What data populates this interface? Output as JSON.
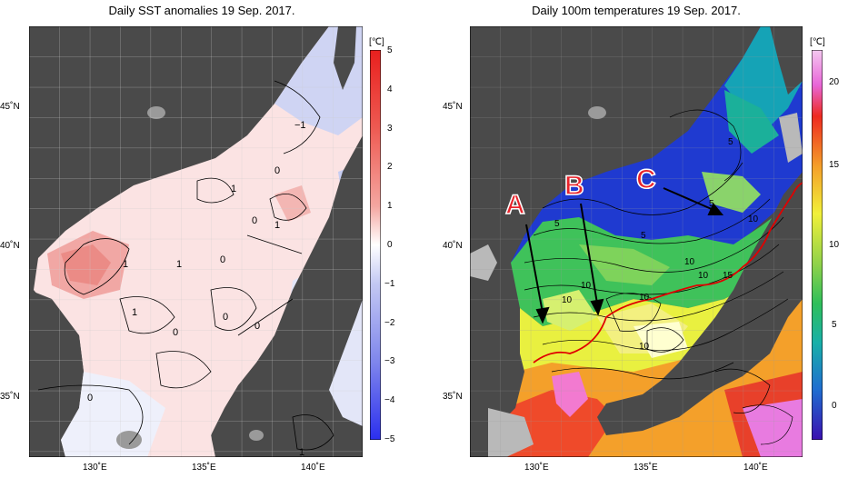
{
  "left_panel": {
    "title": "Daily SST anomalies 19 Sep. 2017.",
    "unit": "[℃]",
    "colorbar_ticks": [
      "5",
      "4",
      "3",
      "2",
      "1",
      "0",
      "−1",
      "−2",
      "−3",
      "−4",
      "−5"
    ],
    "contour_labels": [
      "−1",
      "0",
      "1",
      "1",
      "0",
      "1",
      "1",
      "1",
      "0",
      "0",
      "0",
      "0",
      "1",
      "0"
    ],
    "lat_labels": [
      "45˚N",
      "40˚N",
      "35˚N"
    ],
    "lon_labels": [
      "130˚E",
      "135˚E",
      "140˚E"
    ],
    "colors": {
      "land": "#4a4a4a",
      "ocean_zero": "#ffffff",
      "positive": "#e8302a",
      "negative": "#3344ee"
    }
  },
  "right_panel": {
    "title": "Daily 100m temperatures 19 Sep. 2017.",
    "unit": "[℃]",
    "colorbar_ticks": [
      "20",
      "15",
      "10",
      "5",
      "0"
    ],
    "contour_labels": [
      "5",
      "5",
      "5",
      "5",
      "10",
      "10",
      "10",
      "10",
      "10",
      "15",
      "10",
      "10"
    ],
    "arrow_labels": [
      "A",
      "B",
      "C"
    ],
    "lat_labels": [
      "45˚N",
      "40˚N",
      "35˚N"
    ],
    "lon_labels": [
      "130˚E",
      "135˚E",
      "140˚E"
    ],
    "colors": {
      "land": "#4a4a4a",
      "front_line": "#e00000",
      "arrow_text": "#e8232a"
    }
  }
}
